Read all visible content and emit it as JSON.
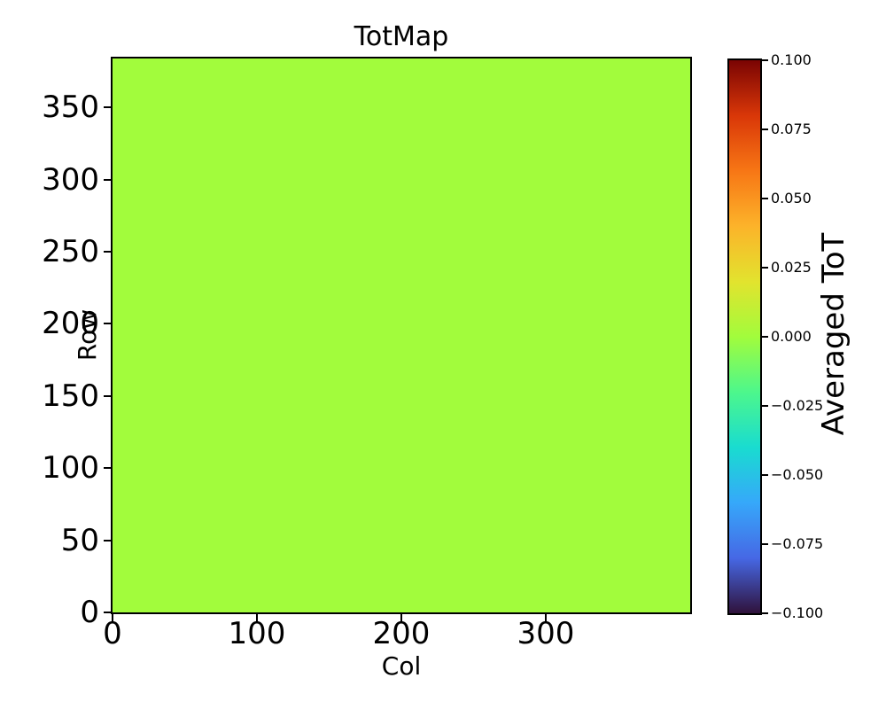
{
  "chart_data": {
    "type": "heatmap",
    "title": "TotMap",
    "xlabel": "Col",
    "ylabel": "Row",
    "colorbar_label": "Averaged ToT",
    "xlim": [
      0,
      400
    ],
    "ylim": [
      0,
      384
    ],
    "clim": [
      -0.1,
      0.1
    ],
    "x_tick_values": [
      0,
      100,
      200,
      300
    ],
    "x_tick_labels": [
      "0",
      "100",
      "200",
      "300"
    ],
    "y_tick_values": [
      0,
      50,
      100,
      150,
      200,
      250,
      300,
      350
    ],
    "y_tick_labels": [
      "0",
      "50",
      "100",
      "150",
      "200",
      "250",
      "300",
      "350"
    ],
    "colorbar_tick_values": [
      0.1,
      0.075,
      0.05,
      0.025,
      0.0,
      -0.025,
      -0.05,
      -0.075,
      -0.1
    ],
    "colorbar_tick_labels": [
      "0.100",
      "0.075",
      "0.050",
      "0.025",
      "0.000",
      "−0.025",
      "−0.050",
      "−0.075",
      "−0.100"
    ],
    "uniform_value": 0.0,
    "fill_color": "#a2fc3c",
    "colormap": "turbo",
    "colormap_stops_top_to_bottom": [
      "#7a0403",
      "#d93708",
      "#f77615",
      "#fcb32a",
      "#e2e32e",
      "#a2fc3c",
      "#4df78c",
      "#19dcd0",
      "#36a8fa",
      "#4668e5",
      "#30123b"
    ],
    "grid": false,
    "legend": false,
    "background": "#ffffff"
  }
}
